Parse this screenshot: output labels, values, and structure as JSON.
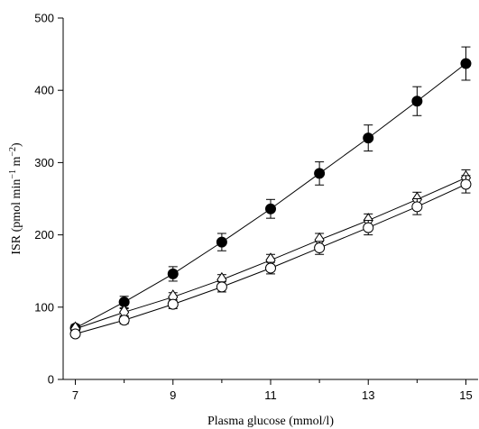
{
  "chart_data": {
    "type": "line",
    "title": "",
    "xlabel": "Plasma glucose (mmol/l)",
    "ylabel": "ISR (pmol min",
    "ylabel_sup1": "−1",
    "ylabel_mid": " m",
    "ylabel_sup2": "−2",
    "ylabel_end": ")",
    "xlim": [
      6.75,
      15.25
    ],
    "ylim": [
      0,
      500
    ],
    "x_ticks": [
      7,
      9,
      11,
      13,
      15
    ],
    "y_ticks": [
      0,
      100,
      200,
      300,
      400,
      500
    ],
    "grid": false,
    "x": [
      7,
      8,
      9,
      10,
      11,
      12,
      13,
      14,
      15
    ],
    "series": [
      {
        "marker": "filled-circle",
        "values": [
          71,
          107,
          146,
          190,
          236,
          285,
          334,
          385,
          437
        ],
        "errors": [
          5,
          8,
          10,
          12,
          13,
          16,
          18,
          20,
          23
        ]
      },
      {
        "marker": "open-diamond",
        "values": [
          70,
          93,
          114,
          138,
          165,
          193,
          220,
          249,
          279
        ],
        "errors": [
          4,
          5,
          6,
          7,
          8,
          9,
          9,
          10,
          11
        ]
      },
      {
        "marker": "open-circle",
        "values": [
          63,
          82,
          104,
          128,
          154,
          182,
          210,
          239,
          270
        ],
        "errors": [
          4,
          5,
          6,
          7,
          8,
          9,
          10,
          11,
          12
        ]
      }
    ],
    "colors": {
      "line": "#000000",
      "marker_fill_open": "#ffffff",
      "marker_fill_closed": "#000000"
    }
  }
}
